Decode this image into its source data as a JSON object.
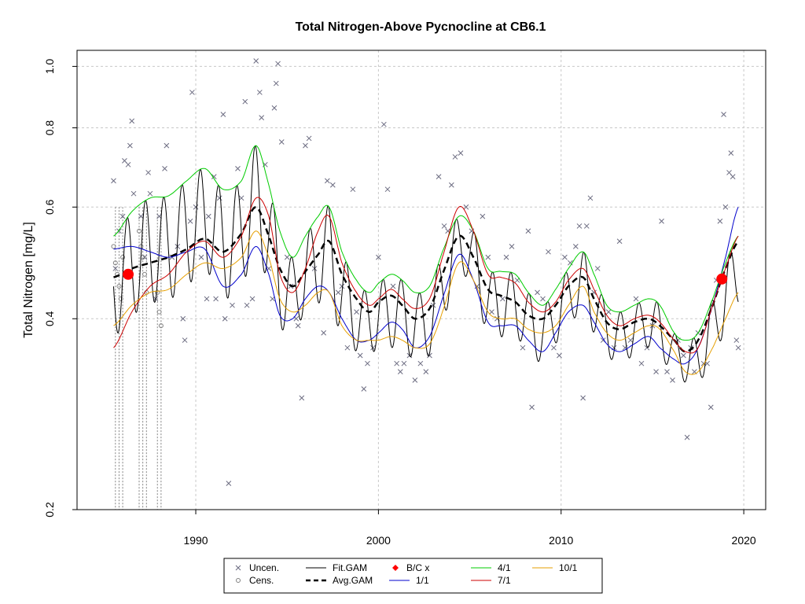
{
  "chart_data": {
    "type": "line",
    "title": "Total Nitrogen-Above Pycnocline at CB6.1",
    "ylabel": "Total Nitrogen [mg/L]",
    "xlabel": "",
    "yscale": "log",
    "xlim": [
      1983.5,
      2021.2
    ],
    "ylim": [
      0.2,
      1.06
    ],
    "x_ticks": [
      1990,
      2000,
      2010,
      2020
    ],
    "x_tick_labels": [
      "1990",
      "2000",
      "2010",
      "2020"
    ],
    "y_ticks": [
      0.2,
      0.4,
      0.6,
      0.8,
      1.0
    ],
    "y_tick_labels": [
      "0.2",
      "0.4",
      "0.6",
      "0.8",
      "1.0"
    ],
    "grid": true,
    "legend_position": "bottom",
    "legend": [
      {
        "label": "Uncen.",
        "type": "cross",
        "color": "#6b6b80"
      },
      {
        "label": "Cens.",
        "type": "circle",
        "color": "#808080"
      },
      {
        "label": "Fit.GAM",
        "type": "line",
        "color": "#000000"
      },
      {
        "label": "Avg.GAM",
        "type": "dashed",
        "color": "#000000"
      },
      {
        "label": "B/C x",
        "type": "diamond",
        "color": "#ff0000"
      },
      {
        "label": "1/1",
        "type": "line",
        "color": "#0000cc"
      },
      {
        "label": "4/1",
        "type": "line",
        "color": "#00cc00"
      },
      {
        "label": "7/1",
        "type": "line",
        "color": "#cc0000"
      },
      {
        "label": "10/1",
        "type": "line",
        "color": "#e69f00"
      }
    ],
    "series": [
      {
        "name": "Avg.GAM",
        "color": "#000000",
        "style": "dashed",
        "x": [
          1985.5,
          1986.5,
          1987.5,
          1988.5,
          1989.5,
          1990.5,
          1991.5,
          1992.5,
          1993.3,
          1994,
          1994.6,
          1995.3,
          1996,
          1996.7,
          1997.3,
          1998,
          1998.8,
          1999.5,
          2000,
          2000.7,
          2001.3,
          2002,
          2002.8,
          2003.5,
          2004.4,
          2005.2,
          2006,
          2006.7,
          2007.5,
          2008.2,
          2009,
          2009.7,
          2010.4,
          2011.2,
          2011.8,
          2012.5,
          2013.2,
          2014,
          2014.8,
          2015.4,
          2016.2,
          2016.8,
          2017.5,
          2018.3,
          2019,
          2019.7
        ],
        "y": [
          0.465,
          0.48,
          0.49,
          0.5,
          0.515,
          0.535,
          0.51,
          0.545,
          0.6,
          0.54,
          0.48,
          0.45,
          0.475,
          0.505,
          0.53,
          0.47,
          0.43,
          0.41,
          0.425,
          0.435,
          0.42,
          0.4,
          0.415,
          0.47,
          0.54,
          0.5,
          0.445,
          0.435,
          0.425,
          0.405,
          0.4,
          0.42,
          0.45,
          0.465,
          0.43,
          0.395,
          0.385,
          0.395,
          0.4,
          0.39,
          0.37,
          0.355,
          0.37,
          0.42,
          0.48,
          0.53
        ]
      },
      {
        "name": "1/1",
        "color": "#0000cc",
        "style": "solid",
        "x": [
          1985.5,
          1986.5,
          1987.5,
          1988.5,
          1989.5,
          1990.5,
          1991.5,
          1992.5,
          1993.3,
          1994,
          1994.6,
          1995.3,
          1996,
          1996.7,
          1997.3,
          1998,
          1998.8,
          1999.5,
          2000,
          2000.7,
          2001.3,
          2002,
          2002.8,
          2003.5,
          2004.4,
          2005.2,
          2006,
          2006.7,
          2007.5,
          2008.2,
          2009,
          2009.7,
          2010.4,
          2011.2,
          2011.8,
          2012.5,
          2013.2,
          2014,
          2014.8,
          2015.4,
          2016.2,
          2016.8,
          2017.5,
          2018.3,
          2019,
          2019.7
        ],
        "y": [
          0.515,
          0.52,
          0.51,
          0.5,
          0.51,
          0.515,
          0.45,
          0.47,
          0.52,
          0.47,
          0.405,
          0.4,
          0.43,
          0.45,
          0.44,
          0.4,
          0.37,
          0.37,
          0.38,
          0.395,
          0.385,
          0.36,
          0.375,
          0.43,
          0.505,
          0.46,
          0.395,
          0.39,
          0.39,
          0.37,
          0.355,
          0.38,
          0.41,
          0.42,
          0.395,
          0.365,
          0.355,
          0.365,
          0.375,
          0.36,
          0.345,
          0.34,
          0.36,
          0.42,
          0.5,
          0.6
        ]
      },
      {
        "name": "4/1",
        "color": "#00cc00",
        "style": "solid",
        "x": [
          1985.5,
          1986.5,
          1987.5,
          1988.5,
          1989.5,
          1990.5,
          1991.5,
          1992.5,
          1993.3,
          1994,
          1994.6,
          1995.3,
          1996,
          1996.7,
          1997.3,
          1998,
          1998.8,
          1999.5,
          2000,
          2000.7,
          2001.3,
          2002,
          2002.8,
          2003.5,
          2004.4,
          2005.2,
          2006,
          2006.7,
          2007.5,
          2008.2,
          2009,
          2009.7,
          2010.4,
          2011.2,
          2011.8,
          2012.5,
          2013.2,
          2014,
          2014.8,
          2015.4,
          2016.2,
          2016.8,
          2017.5,
          2018.3,
          2019,
          2019.7
        ],
        "y": [
          0.54,
          0.59,
          0.62,
          0.625,
          0.66,
          0.69,
          0.64,
          0.66,
          0.75,
          0.65,
          0.55,
          0.5,
          0.54,
          0.58,
          0.6,
          0.51,
          0.46,
          0.44,
          0.455,
          0.47,
          0.46,
          0.44,
          0.45,
          0.51,
          0.58,
          0.55,
          0.48,
          0.475,
          0.47,
          0.44,
          0.42,
          0.445,
          0.48,
          0.51,
          0.47,
          0.42,
          0.41,
          0.42,
          0.43,
          0.42,
          0.38,
          0.37,
          0.38,
          0.43,
          0.49,
          0.54
        ]
      },
      {
        "name": "7/1",
        "color": "#cc0000",
        "style": "solid",
        "x": [
          1985.5,
          1986.5,
          1987.5,
          1988.5,
          1989.5,
          1990.5,
          1991.5,
          1992.5,
          1993.3,
          1994,
          1994.6,
          1995.3,
          1996,
          1996.7,
          1997.3,
          1998,
          1998.8,
          1999.5,
          2000,
          2000.7,
          2001.3,
          2002,
          2002.8,
          2003.5,
          2004.4,
          2005.2,
          2006,
          2006.7,
          2007.5,
          2008.2,
          2009,
          2009.7,
          2010.4,
          2011.2,
          2011.8,
          2012.5,
          2013.2,
          2014,
          2014.8,
          2015.4,
          2016.2,
          2016.8,
          2017.5,
          2018.3,
          2019,
          2019.7
        ],
        "y": [
          0.36,
          0.41,
          0.45,
          0.47,
          0.51,
          0.53,
          0.5,
          0.54,
          0.62,
          0.58,
          0.47,
          0.44,
          0.48,
          0.55,
          0.58,
          0.49,
          0.44,
          0.42,
          0.43,
          0.445,
          0.43,
          0.415,
          0.43,
          0.5,
          0.6,
          0.55,
          0.47,
          0.465,
          0.455,
          0.425,
          0.41,
          0.425,
          0.46,
          0.48,
          0.445,
          0.405,
          0.39,
          0.4,
          0.405,
          0.395,
          0.37,
          0.355,
          0.36,
          0.42,
          0.48,
          0.54
        ]
      },
      {
        "name": "10/1",
        "color": "#e69f00",
        "style": "solid",
        "x": [
          1985.5,
          1986.5,
          1987.5,
          1988.5,
          1989.5,
          1990.5,
          1991.5,
          1992.5,
          1993.3,
          1994,
          1994.6,
          1995.3,
          1996,
          1996.7,
          1997.3,
          1998,
          1998.8,
          1999.5,
          2000,
          2000.7,
          2001.3,
          2002,
          2002.8,
          2003.5,
          2004.4,
          2005.2,
          2006,
          2006.7,
          2007.5,
          2008.2,
          2009,
          2009.7,
          2010.4,
          2011.2,
          2011.8,
          2012.5,
          2013.2,
          2014,
          2014.8,
          2015.4,
          2016.2,
          2016.8,
          2017.5,
          2018.3,
          2019,
          2019.7
        ],
        "y": [
          0.39,
          0.42,
          0.44,
          0.445,
          0.47,
          0.49,
          0.48,
          0.5,
          0.55,
          0.5,
          0.43,
          0.41,
          0.42,
          0.44,
          0.44,
          0.39,
          0.37,
          0.37,
          0.37,
          0.375,
          0.37,
          0.36,
          0.365,
          0.41,
          0.49,
          0.46,
          0.41,
          0.4,
          0.4,
          0.385,
          0.38,
          0.39,
          0.42,
          0.45,
          0.41,
          0.38,
          0.37,
          0.38,
          0.39,
          0.385,
          0.355,
          0.33,
          0.33,
          0.36,
          0.4,
          0.44
        ]
      }
    ],
    "bc_points": [
      {
        "x": 1986.3,
        "y": 0.47
      },
      {
        "x": 2018.8,
        "y": 0.462
      }
    ],
    "uncensored_points": [
      [
        1985.5,
        0.66
      ],
      [
        1985.6,
        0.48
      ],
      [
        1985.8,
        0.55
      ],
      [
        1986,
        0.58
      ],
      [
        1986.1,
        0.71
      ],
      [
        1986.3,
        0.7
      ],
      [
        1986.4,
        0.75
      ],
      [
        1986.5,
        0.82
      ],
      [
        1986.6,
        0.63
      ],
      [
        1987,
        0.58
      ],
      [
        1987.2,
        0.5
      ],
      [
        1987.4,
        0.68
      ],
      [
        1987.5,
        0.63
      ],
      [
        1987.8,
        0.43
      ],
      [
        1988,
        0.58
      ],
      [
        1988.3,
        0.69
      ],
      [
        1988.4,
        0.75
      ],
      [
        1988.7,
        0.5
      ],
      [
        1989,
        0.52
      ],
      [
        1989.3,
        0.4
      ],
      [
        1989.4,
        0.37
      ],
      [
        1989.7,
        0.57
      ],
      [
        1989.8,
        0.91
      ],
      [
        1990,
        0.6
      ],
      [
        1990.3,
        0.5
      ],
      [
        1990.6,
        0.43
      ],
      [
        1990.7,
        0.58
      ],
      [
        1991,
        0.67
      ],
      [
        1991.1,
        0.43
      ],
      [
        1991.3,
        0.62
      ],
      [
        1991.5,
        0.84
      ],
      [
        1991.6,
        0.4
      ],
      [
        1991.8,
        0.22
      ],
      [
        1992,
        0.42
      ],
      [
        1992.3,
        0.69
      ],
      [
        1992.5,
        0.62
      ],
      [
        1992.7,
        0.88
      ],
      [
        1992.8,
        0.42
      ],
      [
        1993.1,
        0.43
      ],
      [
        1993.3,
        1.02
      ],
      [
        1993.5,
        0.91
      ],
      [
        1993.6,
        0.83
      ],
      [
        1993.8,
        0.7
      ],
      [
        1994,
        0.48
      ],
      [
        1994.2,
        0.43
      ],
      [
        1994.3,
        0.86
      ],
      [
        1994.4,
        0.94
      ],
      [
        1994.5,
        1.01
      ],
      [
        1994.7,
        0.76
      ],
      [
        1995,
        0.5
      ],
      [
        1995.2,
        0.45
      ],
      [
        1995.5,
        0.4
      ],
      [
        1995.6,
        0.39
      ],
      [
        1995.8,
        0.3
      ],
      [
        1996,
        0.75
      ],
      [
        1996.2,
        0.77
      ],
      [
        1996.5,
        0.48
      ],
      [
        1997,
        0.38
      ],
      [
        1997.2,
        0.66
      ],
      [
        1997.5,
        0.65
      ],
      [
        1997.8,
        0.44
      ],
      [
        1998,
        0.45
      ],
      [
        1998.3,
        0.36
      ],
      [
        1998.6,
        0.64
      ],
      [
        1998.8,
        0.41
      ],
      [
        1999,
        0.35
      ],
      [
        1999.2,
        0.31
      ],
      [
        1999.4,
        0.34
      ],
      [
        1999.7,
        0.36
      ],
      [
        2000,
        0.5
      ],
      [
        2000.3,
        0.81
      ],
      [
        2000.5,
        0.64
      ],
      [
        2000.8,
        0.45
      ],
      [
        2001,
        0.34
      ],
      [
        2001.2,
        0.33
      ],
      [
        2001.4,
        0.34
      ],
      [
        2001.7,
        0.35
      ],
      [
        2002,
        0.32
      ],
      [
        2002.3,
        0.34
      ],
      [
        2002.6,
        0.33
      ],
      [
        2002.8,
        0.35
      ],
      [
        2003,
        0.42
      ],
      [
        2003.3,
        0.67
      ],
      [
        2003.6,
        0.56
      ],
      [
        2003.8,
        0.55
      ],
      [
        2004,
        0.65
      ],
      [
        2004.2,
        0.72
      ],
      [
        2004.5,
        0.73
      ],
      [
        2004.8,
        0.6
      ],
      [
        2005.1,
        0.55
      ],
      [
        2005.4,
        0.45
      ],
      [
        2005.7,
        0.58
      ],
      [
        2006,
        0.5
      ],
      [
        2006.2,
        0.41
      ],
      [
        2006.5,
        0.4
      ],
      [
        2006.8,
        0.43
      ],
      [
        2007,
        0.5
      ],
      [
        2007.3,
        0.52
      ],
      [
        2007.6,
        0.46
      ],
      [
        2007.9,
        0.36
      ],
      [
        2008.2,
        0.55
      ],
      [
        2008.4,
        0.29
      ],
      [
        2008.7,
        0.44
      ],
      [
        2009,
        0.43
      ],
      [
        2009.3,
        0.51
      ],
      [
        2009.6,
        0.36
      ],
      [
        2009.9,
        0.35
      ],
      [
        2010.2,
        0.5
      ],
      [
        2010.5,
        0.49
      ],
      [
        2010.8,
        0.52
      ],
      [
        2011,
        0.56
      ],
      [
        2011.2,
        0.3
      ],
      [
        2011.4,
        0.56
      ],
      [
        2011.6,
        0.62
      ],
      [
        2011.8,
        0.44
      ],
      [
        2012,
        0.48
      ],
      [
        2012.3,
        0.37
      ],
      [
        2012.6,
        0.41
      ],
      [
        2012.9,
        0.36
      ],
      [
        2013.2,
        0.53
      ],
      [
        2013.5,
        0.36
      ],
      [
        2013.8,
        0.37
      ],
      [
        2014.1,
        0.43
      ],
      [
        2014.4,
        0.34
      ],
      [
        2014.7,
        0.36
      ],
      [
        2015,
        0.39
      ],
      [
        2015.2,
        0.33
      ],
      [
        2015.5,
        0.57
      ],
      [
        2015.8,
        0.33
      ],
      [
        2016.1,
        0.32
      ],
      [
        2016.4,
        0.37
      ],
      [
        2016.7,
        0.35
      ],
      [
        2016.9,
        0.26
      ],
      [
        2017.1,
        0.36
      ],
      [
        2017.3,
        0.33
      ],
      [
        2017.5,
        0.38
      ],
      [
        2017.8,
        0.34
      ],
      [
        2018,
        0.34
      ],
      [
        2018.2,
        0.29
      ],
      [
        2018.5,
        0.46
      ],
      [
        2018.7,
        0.57
      ],
      [
        2018.9,
        0.84
      ],
      [
        2019,
        0.6
      ],
      [
        2019.2,
        0.68
      ],
      [
        2019.3,
        0.73
      ],
      [
        2019.4,
        0.67
      ],
      [
        2019.6,
        0.37
      ],
      [
        2019.7,
        0.36
      ]
    ],
    "censored_points": [
      [
        1985.5,
        0.52
      ],
      [
        1985.6,
        0.49
      ],
      [
        1985.7,
        0.47
      ],
      [
        1985.8,
        0.45
      ],
      [
        1985.9,
        0.43
      ],
      [
        1986,
        0.5
      ],
      [
        1986.9,
        0.55
      ],
      [
        1987,
        0.52
      ],
      [
        1987.1,
        0.5
      ],
      [
        1987.2,
        0.47
      ],
      [
        1987.3,
        0.44
      ],
      [
        1987.9,
        0.44
      ],
      [
        1988,
        0.41
      ],
      [
        1988.1,
        0.39
      ]
    ],
    "censored_x": [
      1985.6,
      1985.8,
      1986.0,
      1986.9,
      1987.1,
      1987.3,
      1987.9,
      1988.1
    ]
  }
}
